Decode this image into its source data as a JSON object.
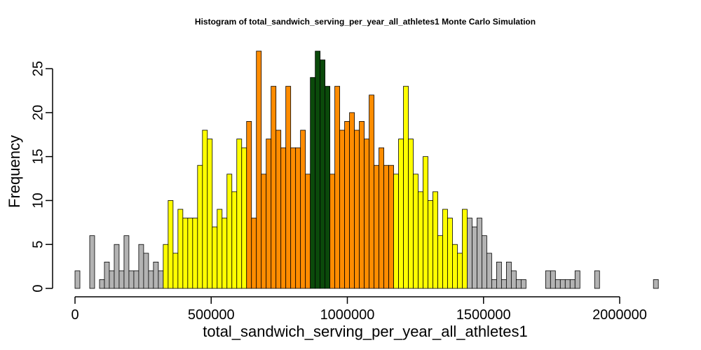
{
  "chart_data": {
    "type": "bar",
    "title": "Histogram of  total_sandwich_serving_per_year_all_athletes1  Monte Carlo Simulation",
    "xlabel": "total_sandwich_serving_per_year_all_athletes1",
    "ylabel": "Frequency",
    "xlim": [
      0,
      2150000
    ],
    "ylim": [
      0,
      27
    ],
    "bin_width": 18000,
    "x_ticks": [
      0,
      500000,
      1000000,
      1500000,
      2000000
    ],
    "x_tick_labels": [
      "0",
      "500000",
      "1000000",
      "1500000",
      "2000000"
    ],
    "y_ticks": [
      0,
      5,
      10,
      15,
      20,
      25
    ],
    "y_tick_labels": [
      "0",
      "5",
      "10",
      "15",
      "20",
      "25"
    ],
    "band_colors": {
      "outer": "#b3b3b3",
      "yellow": "#ffff00",
      "orange": "#ff8c00",
      "center": "#0b4a0b"
    },
    "bins": [
      {
        "x": 0,
        "count": 2,
        "band": "outer"
      },
      {
        "x": 18000,
        "count": 0,
        "band": "outer"
      },
      {
        "x": 36000,
        "count": 0,
        "band": "outer"
      },
      {
        "x": 54000,
        "count": 6,
        "band": "outer"
      },
      {
        "x": 72000,
        "count": 0,
        "band": "outer"
      },
      {
        "x": 90000,
        "count": 1,
        "band": "outer"
      },
      {
        "x": 108000,
        "count": 3,
        "band": "outer"
      },
      {
        "x": 126000,
        "count": 2,
        "band": "outer"
      },
      {
        "x": 144000,
        "count": 5,
        "band": "outer"
      },
      {
        "x": 162000,
        "count": 2,
        "band": "outer"
      },
      {
        "x": 180000,
        "count": 6,
        "band": "outer"
      },
      {
        "x": 198000,
        "count": 2,
        "band": "outer"
      },
      {
        "x": 216000,
        "count": 2,
        "band": "outer"
      },
      {
        "x": 234000,
        "count": 5,
        "band": "outer"
      },
      {
        "x": 252000,
        "count": 4,
        "band": "outer"
      },
      {
        "x": 270000,
        "count": 2,
        "band": "outer"
      },
      {
        "x": 288000,
        "count": 3,
        "band": "outer"
      },
      {
        "x": 306000,
        "count": 2,
        "band": "outer"
      },
      {
        "x": 324000,
        "count": 5,
        "band": "yellow"
      },
      {
        "x": 342000,
        "count": 10,
        "band": "yellow"
      },
      {
        "x": 360000,
        "count": 4,
        "band": "yellow"
      },
      {
        "x": 378000,
        "count": 9,
        "band": "yellow"
      },
      {
        "x": 396000,
        "count": 8,
        "band": "yellow"
      },
      {
        "x": 414000,
        "count": 8,
        "band": "yellow"
      },
      {
        "x": 432000,
        "count": 8,
        "band": "yellow"
      },
      {
        "x": 450000,
        "count": 14,
        "band": "yellow"
      },
      {
        "x": 468000,
        "count": 18,
        "band": "yellow"
      },
      {
        "x": 486000,
        "count": 17,
        "band": "yellow"
      },
      {
        "x": 504000,
        "count": 7,
        "band": "yellow"
      },
      {
        "x": 522000,
        "count": 9,
        "band": "yellow"
      },
      {
        "x": 540000,
        "count": 8,
        "band": "yellow"
      },
      {
        "x": 558000,
        "count": 13,
        "band": "yellow"
      },
      {
        "x": 576000,
        "count": 11,
        "band": "yellow"
      },
      {
        "x": 594000,
        "count": 17,
        "band": "yellow"
      },
      {
        "x": 612000,
        "count": 16,
        "band": "yellow"
      },
      {
        "x": 630000,
        "count": 19,
        "band": "orange"
      },
      {
        "x": 648000,
        "count": 8,
        "band": "orange"
      },
      {
        "x": 666000,
        "count": 27,
        "band": "orange"
      },
      {
        "x": 684000,
        "count": 13,
        "band": "orange"
      },
      {
        "x": 702000,
        "count": 17,
        "band": "orange"
      },
      {
        "x": 720000,
        "count": 23,
        "band": "orange"
      },
      {
        "x": 738000,
        "count": 18,
        "band": "orange"
      },
      {
        "x": 756000,
        "count": 16,
        "band": "orange"
      },
      {
        "x": 774000,
        "count": 23,
        "band": "orange"
      },
      {
        "x": 792000,
        "count": 16,
        "band": "orange"
      },
      {
        "x": 810000,
        "count": 16,
        "band": "orange"
      },
      {
        "x": 828000,
        "count": 18,
        "band": "orange"
      },
      {
        "x": 846000,
        "count": 13,
        "band": "orange"
      },
      {
        "x": 864000,
        "count": 24,
        "band": "center"
      },
      {
        "x": 882000,
        "count": 27,
        "band": "center"
      },
      {
        "x": 900000,
        "count": 26,
        "band": "center"
      },
      {
        "x": 918000,
        "count": 23,
        "band": "center"
      },
      {
        "x": 936000,
        "count": 13,
        "band": "orange"
      },
      {
        "x": 954000,
        "count": 23,
        "band": "orange"
      },
      {
        "x": 972000,
        "count": 18,
        "band": "orange"
      },
      {
        "x": 990000,
        "count": 19,
        "band": "orange"
      },
      {
        "x": 1008000,
        "count": 20,
        "band": "orange"
      },
      {
        "x": 1026000,
        "count": 18,
        "band": "orange"
      },
      {
        "x": 1044000,
        "count": 19,
        "band": "orange"
      },
      {
        "x": 1062000,
        "count": 17,
        "band": "orange"
      },
      {
        "x": 1080000,
        "count": 22,
        "band": "orange"
      },
      {
        "x": 1098000,
        "count": 14,
        "band": "orange"
      },
      {
        "x": 1116000,
        "count": 16,
        "band": "orange"
      },
      {
        "x": 1134000,
        "count": 14,
        "band": "orange"
      },
      {
        "x": 1152000,
        "count": 14,
        "band": "orange"
      },
      {
        "x": 1170000,
        "count": 13,
        "band": "yellow"
      },
      {
        "x": 1188000,
        "count": 17,
        "band": "yellow"
      },
      {
        "x": 1206000,
        "count": 23,
        "band": "yellow"
      },
      {
        "x": 1224000,
        "count": 17,
        "band": "yellow"
      },
      {
        "x": 1242000,
        "count": 13,
        "band": "yellow"
      },
      {
        "x": 1260000,
        "count": 11,
        "band": "yellow"
      },
      {
        "x": 1278000,
        "count": 15,
        "band": "yellow"
      },
      {
        "x": 1296000,
        "count": 10,
        "band": "yellow"
      },
      {
        "x": 1314000,
        "count": 11,
        "band": "yellow"
      },
      {
        "x": 1332000,
        "count": 6,
        "band": "yellow"
      },
      {
        "x": 1350000,
        "count": 9,
        "band": "yellow"
      },
      {
        "x": 1368000,
        "count": 8,
        "band": "yellow"
      },
      {
        "x": 1386000,
        "count": 5,
        "band": "yellow"
      },
      {
        "x": 1404000,
        "count": 4,
        "band": "yellow"
      },
      {
        "x": 1422000,
        "count": 9,
        "band": "yellow"
      },
      {
        "x": 1440000,
        "count": 8,
        "band": "outer"
      },
      {
        "x": 1458000,
        "count": 7,
        "band": "outer"
      },
      {
        "x": 1476000,
        "count": 8,
        "band": "outer"
      },
      {
        "x": 1494000,
        "count": 6,
        "band": "outer"
      },
      {
        "x": 1512000,
        "count": 4,
        "band": "outer"
      },
      {
        "x": 1530000,
        "count": 1,
        "band": "outer"
      },
      {
        "x": 1548000,
        "count": 3,
        "band": "outer"
      },
      {
        "x": 1566000,
        "count": 1,
        "band": "outer"
      },
      {
        "x": 1584000,
        "count": 3,
        "band": "outer"
      },
      {
        "x": 1602000,
        "count": 2,
        "band": "outer"
      },
      {
        "x": 1620000,
        "count": 1,
        "band": "outer"
      },
      {
        "x": 1638000,
        "count": 1,
        "band": "outer"
      },
      {
        "x": 1656000,
        "count": 0,
        "band": "outer"
      },
      {
        "x": 1674000,
        "count": 0,
        "band": "outer"
      },
      {
        "x": 1692000,
        "count": 0,
        "band": "outer"
      },
      {
        "x": 1710000,
        "count": 0,
        "band": "outer"
      },
      {
        "x": 1728000,
        "count": 2,
        "band": "outer"
      },
      {
        "x": 1746000,
        "count": 2,
        "band": "outer"
      },
      {
        "x": 1764000,
        "count": 1,
        "band": "outer"
      },
      {
        "x": 1782000,
        "count": 1,
        "band": "outer"
      },
      {
        "x": 1800000,
        "count": 1,
        "band": "outer"
      },
      {
        "x": 1818000,
        "count": 1,
        "band": "outer"
      },
      {
        "x": 1836000,
        "count": 2,
        "band": "outer"
      },
      {
        "x": 1854000,
        "count": 0,
        "band": "outer"
      },
      {
        "x": 1872000,
        "count": 0,
        "band": "outer"
      },
      {
        "x": 1890000,
        "count": 0,
        "band": "outer"
      },
      {
        "x": 1908000,
        "count": 2,
        "band": "outer"
      },
      {
        "x": 1926000,
        "count": 0,
        "band": "outer"
      },
      {
        "x": 1944000,
        "count": 0,
        "band": "outer"
      },
      {
        "x": 1962000,
        "count": 0,
        "band": "outer"
      },
      {
        "x": 1980000,
        "count": 0,
        "band": "outer"
      },
      {
        "x": 1998000,
        "count": 0,
        "band": "outer"
      },
      {
        "x": 2016000,
        "count": 0,
        "band": "outer"
      },
      {
        "x": 2034000,
        "count": 0,
        "band": "outer"
      },
      {
        "x": 2052000,
        "count": 0,
        "band": "outer"
      },
      {
        "x": 2070000,
        "count": 0,
        "band": "outer"
      },
      {
        "x": 2088000,
        "count": 0,
        "band": "outer"
      },
      {
        "x": 2106000,
        "count": 0,
        "band": "outer"
      },
      {
        "x": 2124000,
        "count": 1,
        "band": "outer"
      }
    ]
  }
}
